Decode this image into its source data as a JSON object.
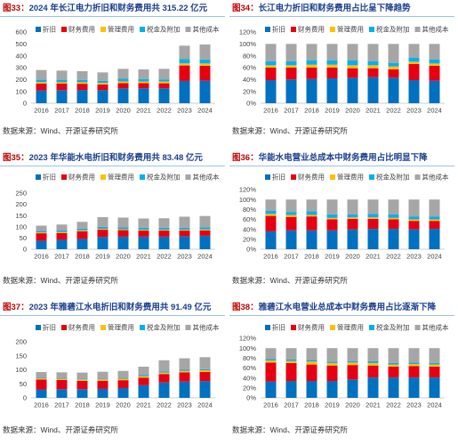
{
  "chart_data": [
    {
      "figure_label": "图33：",
      "title": "2024 年长江电力折旧和财务费用共 315.22 亿元",
      "type": "bar",
      "stacked": true,
      "legend_position": "top",
      "grid": false,
      "categories": [
        "2016",
        "2017",
        "2018",
        "2019",
        "2020",
        "2021",
        "2022",
        "2023",
        "2024"
      ],
      "ylim": [
        0,
        600
      ],
      "yticks": [
        0,
        100,
        200,
        300,
        400,
        500,
        600
      ],
      "ytick_labels": [
        "0",
        "100",
        "200",
        "300",
        "400",
        "500",
        "600"
      ],
      "series": [
        {
          "name": "折旧",
          "color": "#0070C0",
          "values": [
            108,
            110,
            112,
            110,
            125,
            126,
            126,
            188,
            190
          ]
        },
        {
          "name": "财务费用",
          "color": "#E60012",
          "values": [
            58,
            55,
            52,
            48,
            45,
            43,
            42,
            130,
            125
          ]
        },
        {
          "name": "管理费用",
          "color": "#FFC000",
          "values": [
            12,
            12,
            13,
            13,
            14,
            14,
            15,
            18,
            20
          ]
        },
        {
          "name": "税金及附加",
          "color": "#00B0F0",
          "values": [
            20,
            18,
            20,
            17,
            22,
            20,
            18,
            35,
            33
          ]
        },
        {
          "name": "其他成本",
          "color": "#A6A6A6",
          "values": [
            82,
            80,
            73,
            72,
            84,
            82,
            89,
            114,
            127
          ]
        }
      ],
      "source": "数据来源：Wind、开源证券研究所"
    },
    {
      "figure_label": "图34：",
      "title": "长江电力折旧和财务费用占比呈下降趋势",
      "type": "bar",
      "stacked": true,
      "legend_position": "top",
      "grid": false,
      "categories": [
        "2016",
        "2017",
        "2018",
        "2019",
        "2020",
        "2021",
        "2022",
        "2023",
        "2024"
      ],
      "ylim": [
        0,
        120
      ],
      "yticks": [
        0,
        20,
        40,
        60,
        80,
        100,
        120
      ],
      "ytick_labels": [
        "0%",
        "20%",
        "40%",
        "60%",
        "80%",
        "100%",
        "120%"
      ],
      "series": [
        {
          "name": "折旧",
          "color": "#0070C0",
          "values": [
            39,
            40,
            41,
            42,
            43,
            44,
            43,
            39,
            38
          ]
        },
        {
          "name": "财务费用",
          "color": "#E60012",
          "values": [
            21,
            20,
            19,
            18,
            16,
            15,
            14,
            27,
            25
          ]
        },
        {
          "name": "管理费用",
          "color": "#FFC000",
          "values": [
            4,
            4,
            5,
            5,
            5,
            5,
            5,
            4,
            4
          ]
        },
        {
          "name": "税金及附加",
          "color": "#00B0F0",
          "values": [
            7,
            7,
            7,
            7,
            8,
            7,
            6,
            7,
            7
          ]
        },
        {
          "name": "其他成本",
          "color": "#A6A6A6",
          "values": [
            29,
            29,
            28,
            28,
            28,
            29,
            32,
            23,
            26
          ]
        }
      ],
      "source": "数据来源：Wind、开源证券研究所"
    },
    {
      "figure_label": "图35：",
      "title": "2023 年华能水电折旧和财务费用共 83.48 亿元",
      "type": "bar",
      "stacked": true,
      "legend_position": "top",
      "grid": false,
      "categories": [
        "2016",
        "2017",
        "2018",
        "2019",
        "2020",
        "2021",
        "2022",
        "2023",
        "2024"
      ],
      "ylim": [
        0,
        250
      ],
      "yticks": [
        0,
        50,
        100,
        150,
        200,
        250
      ],
      "ytick_labels": [
        "0",
        "50",
        "100",
        "150",
        "200",
        "250"
      ],
      "series": [
        {
          "name": "折旧",
          "color": "#0070C0",
          "values": [
            38,
            42,
            46,
            55,
            56,
            56,
            56,
            58,
            60
          ]
        },
        {
          "name": "财务费用",
          "color": "#E60012",
          "values": [
            33,
            30,
            34,
            32,
            29,
            27,
            27,
            25,
            24
          ]
        },
        {
          "name": "管理费用",
          "color": "#FFC000",
          "values": [
            4,
            4,
            4,
            4,
            4,
            4,
            4,
            4,
            4
          ]
        },
        {
          "name": "税金及附加",
          "color": "#00B0F0",
          "values": [
            6,
            7,
            8,
            9,
            8,
            9,
            9,
            9,
            9
          ]
        },
        {
          "name": "其他成本",
          "color": "#A6A6A6",
          "values": [
            24,
            27,
            30,
            43,
            44,
            41,
            42,
            49,
            51
          ]
        }
      ],
      "source": "数据来源：Wind、开源证券研究所"
    },
    {
      "figure_label": "图36：",
      "title": "华能水电营业总成本中财务费用占比明显下降",
      "type": "bar",
      "stacked": true,
      "legend_position": "top",
      "grid": false,
      "categories": [
        "2016",
        "2017",
        "2018",
        "2019",
        "2020",
        "2021",
        "2022",
        "2023",
        "2024"
      ],
      "ylim": [
        0,
        120
      ],
      "yticks": [
        0,
        20,
        40,
        60,
        80,
        100,
        120
      ],
      "ytick_labels": [
        "0%",
        "20%",
        "40%",
        "60%",
        "80%",
        "100%",
        "120%"
      ],
      "series": [
        {
          "name": "折旧",
          "color": "#0070C0",
          "values": [
            36,
            38,
            38,
            38,
            40,
            41,
            41,
            40,
            41
          ]
        },
        {
          "name": "财务费用",
          "color": "#E60012",
          "values": [
            31,
            27,
            28,
            22,
            21,
            20,
            19,
            17,
            16
          ]
        },
        {
          "name": "管理费用",
          "color": "#FFC000",
          "values": [
            4,
            4,
            3,
            3,
            3,
            3,
            3,
            3,
            3
          ]
        },
        {
          "name": "税金及附加",
          "color": "#00B0F0",
          "values": [
            6,
            6,
            7,
            7,
            6,
            7,
            7,
            6,
            6
          ]
        },
        {
          "name": "其他成本",
          "color": "#A6A6A6",
          "values": [
            23,
            25,
            24,
            30,
            30,
            29,
            30,
            34,
            34
          ]
        }
      ],
      "source": "数据来源：Wind、开源证券研究所"
    },
    {
      "figure_label": "图37：",
      "title": "2023 年雅砻江水电折旧和财务费用共 91.49 亿元",
      "type": "bar",
      "stacked": true,
      "legend_position": "top",
      "grid": false,
      "categories": [
        "2016",
        "2017",
        "2018",
        "2019",
        "2020",
        "2021",
        "2022",
        "2023",
        "2024"
      ],
      "ylim": [
        0,
        200
      ],
      "yticks": [
        0,
        50,
        100,
        150,
        200
      ],
      "ytick_labels": [
        "0",
        "50",
        "100",
        "150",
        "200"
      ],
      "series": [
        {
          "name": "折旧",
          "color": "#0070C0",
          "values": [
            30,
            31,
            31,
            32,
            35,
            45,
            55,
            58,
            60
          ]
        },
        {
          "name": "财务费用",
          "color": "#E60012",
          "values": [
            35,
            33,
            30,
            29,
            28,
            27,
            30,
            33,
            32
          ]
        },
        {
          "name": "管理费用",
          "color": "#FFC000",
          "values": [
            4,
            4,
            5,
            5,
            5,
            5,
            5,
            5,
            6
          ]
        },
        {
          "name": "税金及附加",
          "color": "#00B0F0",
          "values": [
            3,
            3,
            3,
            3,
            3,
            4,
            4,
            4,
            4
          ]
        },
        {
          "name": "其他成本",
          "color": "#A6A6A6",
          "values": [
            20,
            20,
            21,
            24,
            25,
            30,
            40,
            41,
            43
          ]
        }
      ],
      "source": "数据来源：Wind、开源证券研究所"
    },
    {
      "figure_label": "图38：",
      "title": "雅砻江水电营业总成本中财务费用占比逐渐下降",
      "type": "bar",
      "stacked": true,
      "legend_position": "top",
      "grid": false,
      "categories": [
        "2016",
        "2017",
        "2018",
        "2019",
        "2020",
        "2021",
        "2022",
        "2023",
        "2024"
      ],
      "ylim": [
        0,
        120
      ],
      "yticks": [
        0,
        20,
        40,
        60,
        80,
        100,
        120
      ],
      "ytick_labels": [
        "0%",
        "20%",
        "40%",
        "60%",
        "80%",
        "100%",
        "120%"
      ],
      "series": [
        {
          "name": "折旧",
          "color": "#0070C0",
          "values": [
            33,
            34,
            34,
            34,
            37,
            41,
            41,
            41,
            41
          ]
        },
        {
          "name": "财务费用",
          "color": "#E60012",
          "values": [
            38,
            36,
            33,
            31,
            29,
            24,
            22,
            23,
            22
          ]
        },
        {
          "name": "管理费用",
          "color": "#FFC000",
          "values": [
            4,
            4,
            6,
            5,
            5,
            5,
            4,
            4,
            4
          ]
        },
        {
          "name": "税金及附加",
          "color": "#00B0F0",
          "values": [
            3,
            3,
            3,
            3,
            3,
            4,
            3,
            3,
            3
          ]
        },
        {
          "name": "其他成本",
          "color": "#A6A6A6",
          "values": [
            22,
            23,
            24,
            27,
            26,
            26,
            30,
            29,
            30
          ]
        }
      ],
      "source": "数据来源：Wind、开源证券研究所"
    }
  ]
}
